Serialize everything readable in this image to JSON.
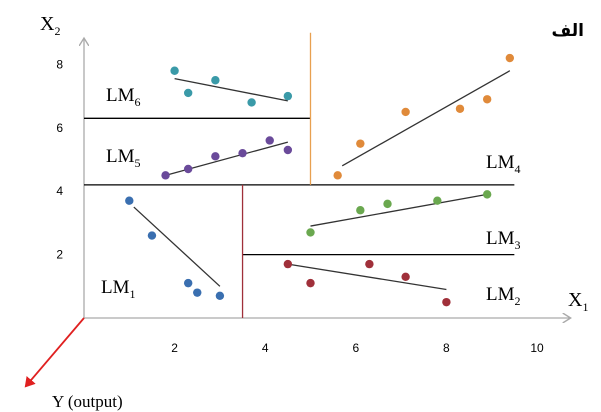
{
  "figure_label": "الف",
  "axes": {
    "x_label": "X",
    "x_sub": "1",
    "y_label": "X",
    "y_sub": "2",
    "output_label": "Y (output)",
    "x_ticks": [
      "2",
      "4",
      "6",
      "8",
      "10"
    ],
    "y_ticks": [
      "2",
      "4",
      "6",
      "8"
    ]
  },
  "regions": [
    {
      "name": "LM",
      "sub": "1"
    },
    {
      "name": "LM",
      "sub": "2"
    },
    {
      "name": "LM",
      "sub": "3"
    },
    {
      "name": "LM",
      "sub": "4"
    },
    {
      "name": "LM",
      "sub": "5"
    },
    {
      "name": "LM",
      "sub": "6"
    }
  ],
  "colors": {
    "axis": "#aaaaaa",
    "split": "#000000",
    "vsplit_lower": "#a0303a",
    "vsplit_upper": "#e8a050",
    "output_arrow": "#e02020",
    "fit": "#333333"
  },
  "chart_data": {
    "type": "scatter",
    "xlim": [
      0,
      10.5
    ],
    "ylim": [
      0,
      8.8
    ],
    "splits": [
      {
        "orient": "h",
        "at": 4.2,
        "from": 0,
        "to": 9.5,
        "color": "#000000"
      },
      {
        "orient": "h",
        "at": 6.3,
        "from": 0,
        "to": 5.0,
        "color": "#000000"
      },
      {
        "orient": "h",
        "at": 2.0,
        "from": 3.5,
        "to": 9.5,
        "color": "#000000"
      },
      {
        "orient": "v",
        "at": 3.5,
        "from": 0,
        "to": 4.2,
        "color": "#a0303a"
      },
      {
        "orient": "v",
        "at": 5.0,
        "from": 4.2,
        "to": 9.0,
        "color": "#e8a050"
      }
    ],
    "groups": [
      {
        "name": "LM1",
        "color": "#3a6fb0",
        "points": [
          [
            1.0,
            3.7
          ],
          [
            1.5,
            2.6
          ],
          [
            2.3,
            1.1
          ],
          [
            2.5,
            0.8
          ],
          [
            3.0,
            0.7
          ]
        ],
        "fit": [
          [
            1.1,
            3.5
          ],
          [
            3.0,
            1.0
          ]
        ]
      },
      {
        "name": "LM2",
        "color": "#a0303a",
        "points": [
          [
            4.5,
            1.7
          ],
          [
            5.0,
            1.1
          ],
          [
            6.3,
            1.7
          ],
          [
            7.1,
            1.3
          ],
          [
            8.0,
            0.5
          ]
        ],
        "fit": [
          [
            4.5,
            1.7
          ],
          [
            8.0,
            0.9
          ]
        ]
      },
      {
        "name": "LM3",
        "color": "#6aa84f",
        "points": [
          [
            5.0,
            2.7
          ],
          [
            6.1,
            3.4
          ],
          [
            6.7,
            3.6
          ],
          [
            7.8,
            3.7
          ],
          [
            8.9,
            3.9
          ]
        ],
        "fit": [
          [
            5.0,
            2.9
          ],
          [
            8.9,
            3.9
          ]
        ]
      },
      {
        "name": "LM4",
        "color": "#e08a3a",
        "points": [
          [
            5.6,
            4.5
          ],
          [
            6.1,
            5.5
          ],
          [
            7.1,
            6.5
          ],
          [
            8.3,
            6.6
          ],
          [
            8.9,
            6.9
          ],
          [
            9.4,
            8.2
          ]
        ],
        "fit": [
          [
            5.7,
            4.8
          ],
          [
            9.4,
            7.8
          ]
        ]
      },
      {
        "name": "LM5",
        "color": "#6a4a9a",
        "points": [
          [
            1.8,
            4.5
          ],
          [
            2.3,
            4.7
          ],
          [
            2.9,
            5.1
          ],
          [
            3.5,
            5.2
          ],
          [
            4.1,
            5.6
          ],
          [
            4.5,
            5.3
          ]
        ],
        "fit": [
          [
            1.8,
            4.5
          ],
          [
            4.5,
            5.55
          ]
        ]
      },
      {
        "name": "LM6",
        "color": "#3a9aa8",
        "points": [
          [
            2.0,
            7.8
          ],
          [
            2.3,
            7.1
          ],
          [
            2.9,
            7.5
          ],
          [
            3.7,
            6.8
          ],
          [
            4.5,
            7.0
          ]
        ],
        "fit": [
          [
            2.0,
            7.55
          ],
          [
            4.5,
            6.85
          ]
        ]
      }
    ]
  }
}
